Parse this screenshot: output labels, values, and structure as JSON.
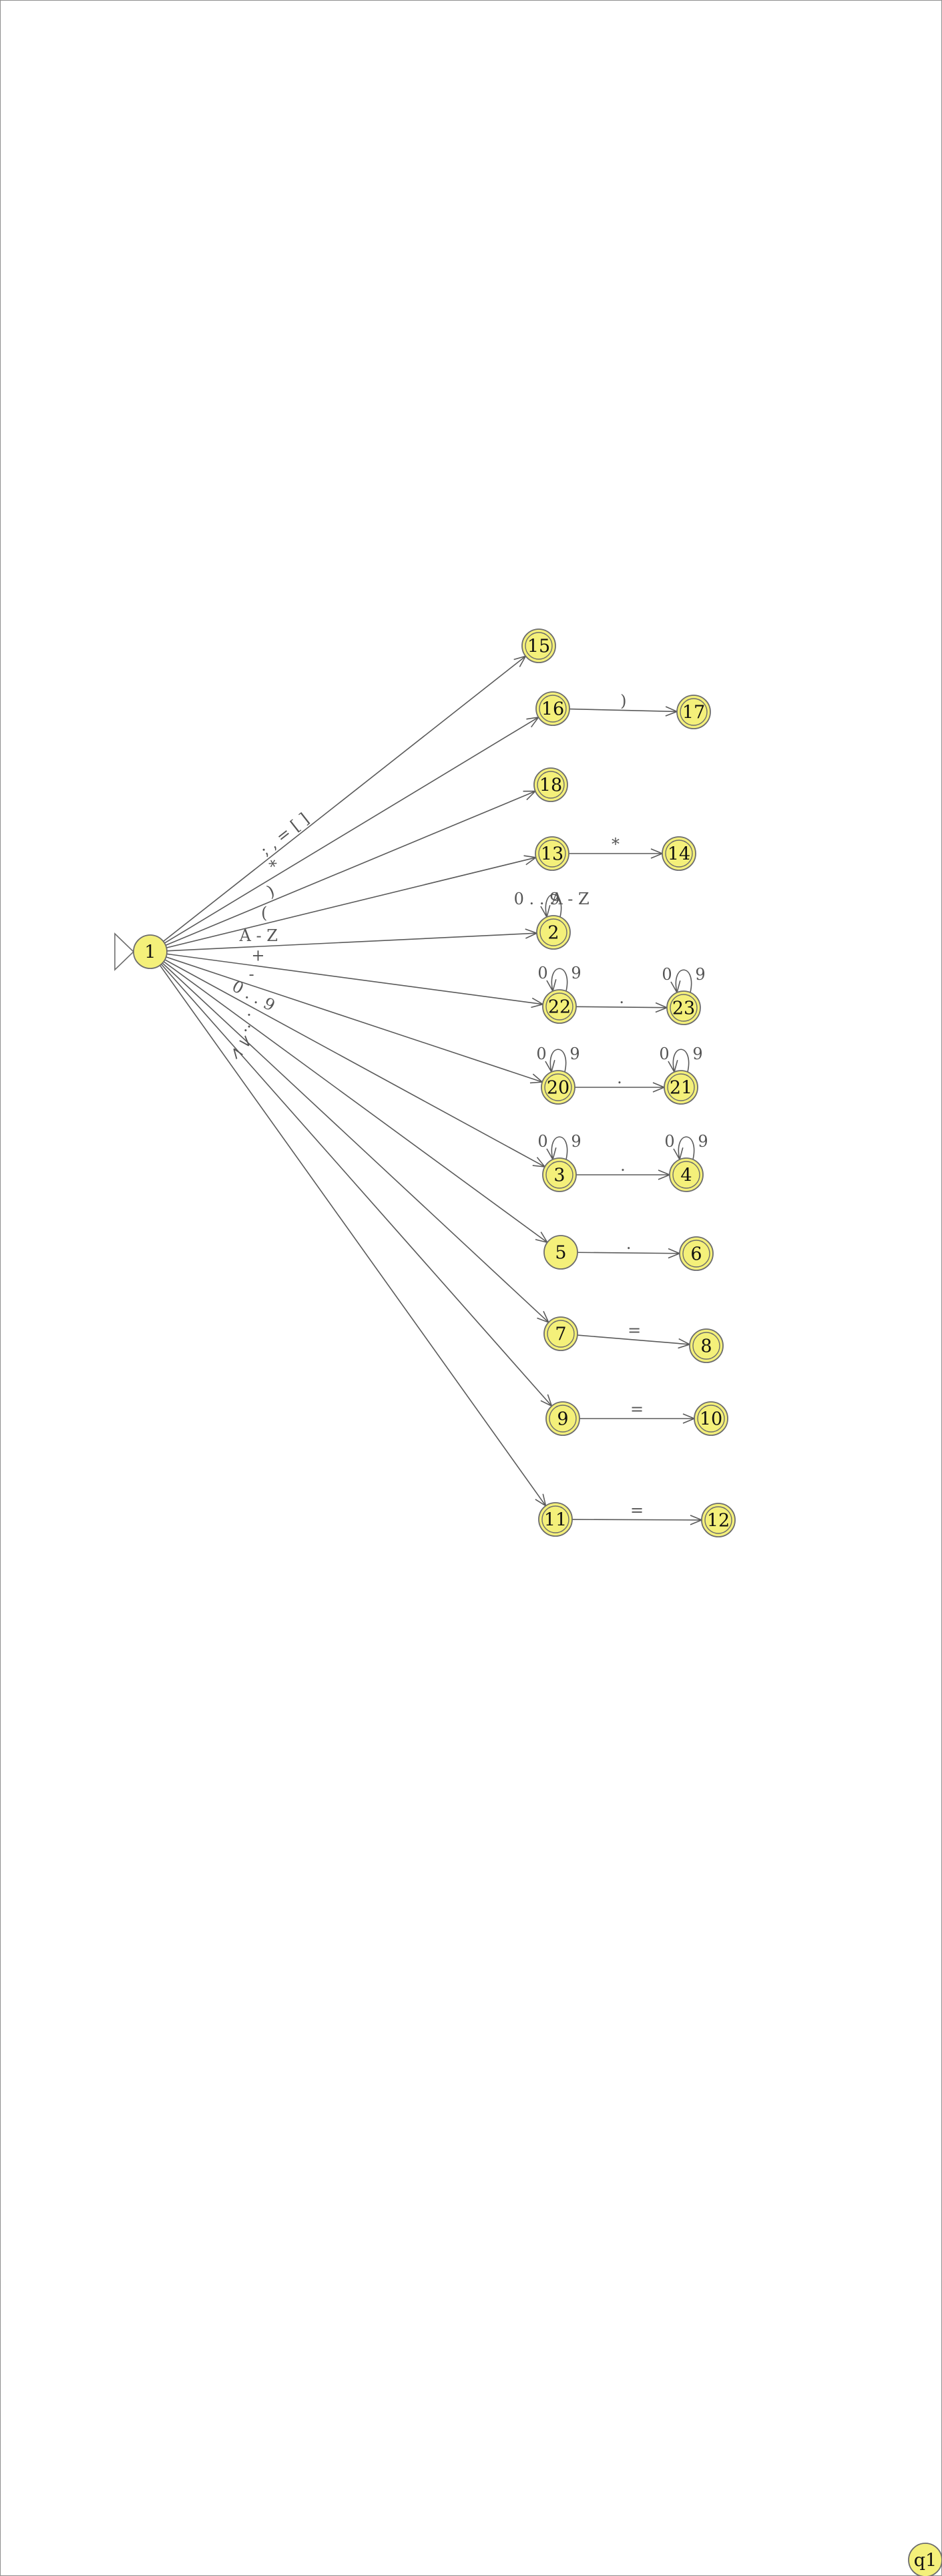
{
  "states": [
    {
      "id": "1",
      "accepting": false,
      "start": true
    },
    {
      "id": "2",
      "accepting": true
    },
    {
      "id": "3",
      "accepting": true
    },
    {
      "id": "4",
      "accepting": true
    },
    {
      "id": "5",
      "accepting": false
    },
    {
      "id": "6",
      "accepting": true
    },
    {
      "id": "7",
      "accepting": true
    },
    {
      "id": "8",
      "accepting": true
    },
    {
      "id": "9",
      "accepting": true
    },
    {
      "id": "10",
      "accepting": true
    },
    {
      "id": "11",
      "accepting": true
    },
    {
      "id": "12",
      "accepting": true
    },
    {
      "id": "13",
      "accepting": true
    },
    {
      "id": "14",
      "accepting": true
    },
    {
      "id": "15",
      "accepting": true
    },
    {
      "id": "16",
      "accepting": true
    },
    {
      "id": "17",
      "accepting": true
    },
    {
      "id": "18",
      "accepting": true
    },
    {
      "id": "20",
      "accepting": true
    },
    {
      "id": "21",
      "accepting": true
    },
    {
      "id": "22",
      "accepting": true
    },
    {
      "id": "23",
      "accepting": true
    },
    {
      "id": "q1",
      "accepting": false
    }
  ],
  "transitions": [
    {
      "from": "1",
      "to": "15",
      "label": "; , = [ ]"
    },
    {
      "from": "1",
      "to": "16",
      "label": "*"
    },
    {
      "from": "1",
      "to": "18",
      "label": ")"
    },
    {
      "from": "1",
      "to": "13",
      "label": "("
    },
    {
      "from": "1",
      "to": "2",
      "label": "A - Z"
    },
    {
      "from": "1",
      "to": "22",
      "label": "+"
    },
    {
      "from": "1",
      "to": "20",
      "label": "-"
    },
    {
      "from": "1",
      "to": "3",
      "label": "0 . . 9"
    },
    {
      "from": "1",
      "to": "5",
      "label": "."
    },
    {
      "from": "1",
      "to": "7",
      "label": ":"
    },
    {
      "from": "1",
      "to": "9",
      "label": ">"
    },
    {
      "from": "1",
      "to": "11",
      "label": "<"
    },
    {
      "from": "16",
      "to": "17",
      "label": ")"
    },
    {
      "from": "13",
      "to": "14",
      "label": "*"
    },
    {
      "from": "22",
      "to": "23",
      "label": "."
    },
    {
      "from": "20",
      "to": "21",
      "label": "."
    },
    {
      "from": "3",
      "to": "4",
      "label": "."
    },
    {
      "from": "5",
      "to": "6",
      "label": "."
    },
    {
      "from": "7",
      "to": "8",
      "label": "="
    },
    {
      "from": "9",
      "to": "10",
      "label": "="
    },
    {
      "from": "11",
      "to": "12",
      "label": "="
    }
  ],
  "self_loops": [
    {
      "state": "2",
      "label_left": "0 . . 9",
      "label_right": "A - Z"
    },
    {
      "state": "22",
      "label_left": "0",
      "label_right": "9"
    },
    {
      "state": "23",
      "label_left": "0",
      "label_right": "9"
    },
    {
      "state": "20",
      "label_left": "0",
      "label_right": "9"
    },
    {
      "state": "21",
      "label_left": "0",
      "label_right": "9"
    },
    {
      "state": "3",
      "label_left": "0",
      "label_right": "9"
    },
    {
      "state": "4",
      "label_left": "0",
      "label_right": "9"
    }
  ]
}
